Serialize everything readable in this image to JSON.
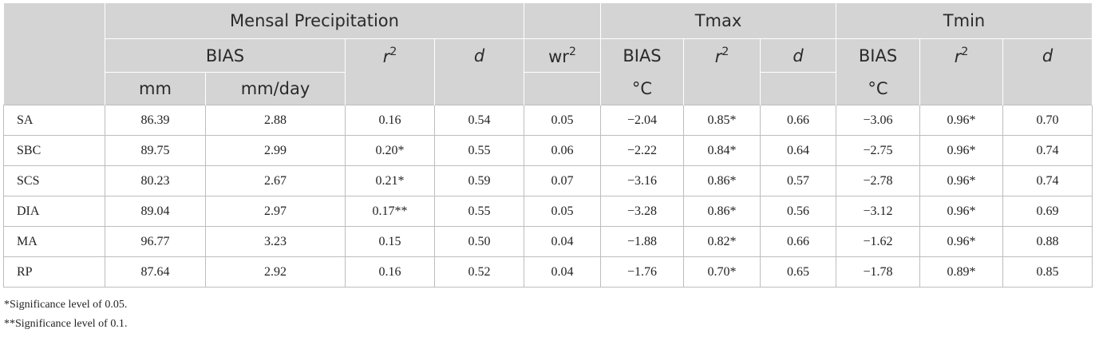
{
  "header": {
    "group_precip": "Mensal Precipitation",
    "group_tmax": "Tmax",
    "group_tmin": "Tmin",
    "bias": "BIAS",
    "r_base": "r",
    "r_exp": "2",
    "d": "d",
    "wr_base": "wr",
    "wr_exp": "2",
    "unit_mm": "mm",
    "unit_mmday": "mm/day",
    "unit_c": "°C"
  },
  "rows": [
    {
      "label": "SA",
      "mm": "86.39",
      "mmday": "2.88",
      "r2": "0.16",
      "d": "0.54",
      "wr2": "0.05",
      "tmax_bias": "−2.04",
      "tmax_r2": "0.85*",
      "tmax_d": "0.66",
      "tmin_bias": "−3.06",
      "tmin_r2": "0.96*",
      "tmin_d": "0.70"
    },
    {
      "label": "SBC",
      "mm": "89.75",
      "mmday": "2.99",
      "r2": "0.20*",
      "d": "0.55",
      "wr2": "0.06",
      "tmax_bias": "−2.22",
      "tmax_r2": "0.84*",
      "tmax_d": "0.64",
      "tmin_bias": "−2.75",
      "tmin_r2": "0.96*",
      "tmin_d": "0.74"
    },
    {
      "label": "SCS",
      "mm": "80.23",
      "mmday": "2.67",
      "r2": "0.21*",
      "d": "0.59",
      "wr2": "0.07",
      "tmax_bias": "−3.16",
      "tmax_r2": "0.86*",
      "tmax_d": "0.57",
      "tmin_bias": "−2.78",
      "tmin_r2": "0.96*",
      "tmin_d": "0.74"
    },
    {
      "label": "DIA",
      "mm": "89.04",
      "mmday": "2.97",
      "r2": "0.17**",
      "d": "0.55",
      "wr2": "0.05",
      "tmax_bias": "−3.28",
      "tmax_r2": "0.86*",
      "tmax_d": "0.56",
      "tmin_bias": "−3.12",
      "tmin_r2": "0.96*",
      "tmin_d": "0.69"
    },
    {
      "label": "MA",
      "mm": "96.77",
      "mmday": "3.23",
      "r2": "0.15",
      "d": "0.50",
      "wr2": "0.04",
      "tmax_bias": "−1.88",
      "tmax_r2": "0.82*",
      "tmax_d": "0.66",
      "tmin_bias": "−1.62",
      "tmin_r2": "0.96*",
      "tmin_d": "0.88"
    },
    {
      "label": "RP",
      "mm": "87.64",
      "mmday": "2.92",
      "r2": "0.16",
      "d": "0.52",
      "wr2": "0.04",
      "tmax_bias": "−1.76",
      "tmax_r2": "0.70*",
      "tmax_d": "0.65",
      "tmin_bias": "−1.78",
      "tmin_r2": "0.89*",
      "tmin_d": "0.85"
    }
  ],
  "footnotes": [
    "*Significance level of 0.05.",
    "**Significance level of 0.1."
  ]
}
